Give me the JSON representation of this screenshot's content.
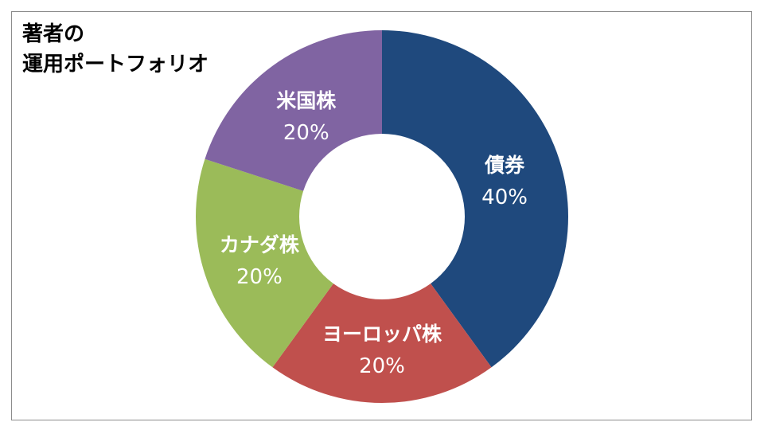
{
  "chart_data": {
    "type": "pie",
    "variant": "donut",
    "title_lines": [
      "著者の",
      "運用ポートフォリオ"
    ],
    "slices": [
      {
        "label": "債券",
        "value": 40,
        "value_label": "40%",
        "color": "#1f497d"
      },
      {
        "label": "ヨーロッパ株",
        "value": 20,
        "value_label": "20%",
        "color": "#c0504d"
      },
      {
        "label": "カナダ株",
        "value": 20,
        "value_label": "20%",
        "color": "#9bbb59"
      },
      {
        "label": "米国株",
        "value": 20,
        "value_label": "20%",
        "color": "#8064a2"
      }
    ],
    "start": "12 o'clock",
    "direction": "clockwise",
    "legend": "none",
    "border_color": "#8c8c8c"
  }
}
